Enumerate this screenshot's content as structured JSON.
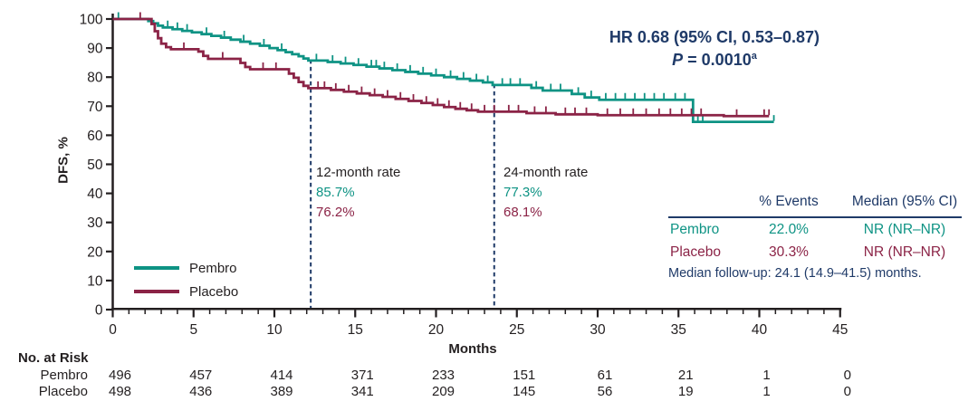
{
  "colors": {
    "pembro_teal": "#0E9384",
    "placebo_maroon": "#8B2346",
    "navy": "#1F3A68",
    "axis_black": "#231F20"
  },
  "annotation": {
    "hr_line": "HR 0.68 (95% CI, 0.53–0.87)",
    "p_prefix": "P",
    "p_rest": " = 0.0010",
    "p_sup": "a"
  },
  "rate_callouts": [
    {
      "label": "12-month rate",
      "pembro": "85.7%",
      "placebo": "76.2%"
    },
    {
      "label": "24-month rate",
      "pembro": "77.3%",
      "placebo": "68.1%"
    }
  ],
  "summary_table": {
    "col_events": "% Events",
    "col_median": "Median (95% CI)",
    "rows": [
      {
        "group": "Pembro",
        "events": "22.0%",
        "median": "NR (NR–NR)"
      },
      {
        "group": "Placebo",
        "events": "30.3%",
        "median": "NR (NR–NR)"
      }
    ],
    "footnote": "Median follow-up: 24.1 (14.9–41.5) months."
  },
  "risk_table": {
    "title": "No. at Risk",
    "rows": [
      {
        "label": "Pembro",
        "counts": [
          "496",
          "457",
          "414",
          "371",
          "233",
          "151",
          "61",
          "21",
          "1",
          "0"
        ]
      },
      {
        "label": "Placebo",
        "counts": [
          "498",
          "436",
          "389",
          "341",
          "209",
          "145",
          "56",
          "19",
          "1",
          "0"
        ]
      }
    ]
  },
  "chart_data": {
    "type": "line",
    "subtype": "kaplan-meier-step",
    "xlabel": "Months",
    "ylabel": "DFS, %",
    "xlim": [
      0,
      45
    ],
    "ylim": [
      0,
      100
    ],
    "x_ticks": [
      0,
      5,
      10,
      15,
      20,
      25,
      30,
      35,
      40,
      45
    ],
    "y_ticks": [
      100,
      90,
      80,
      70,
      60,
      50,
      40,
      30,
      20,
      10,
      0
    ],
    "grid": false,
    "legend_position": "lower-left",
    "hr": 0.68,
    "hr_ci": [
      0.53,
      0.87
    ],
    "p_value": 0.001,
    "milestones": [
      {
        "month": 12,
        "pembro_pct": 85.7,
        "placebo_pct": 76.2
      },
      {
        "month": 24,
        "pembro_pct": 77.3,
        "placebo_pct": 68.1
      }
    ],
    "milestone_line_months": [
      12.25,
      23.6
    ],
    "series": [
      {
        "name": "Pembro",
        "color_key": "pembro_teal",
        "pct_events": 22.0,
        "median_text": "NR (NR–NR)",
        "end_month": 40.9,
        "steps": [
          [
            0,
            100
          ],
          [
            2.2,
            99.3
          ],
          [
            2.5,
            98.5
          ],
          [
            2.8,
            97.7
          ],
          [
            3.1,
            97.1
          ],
          [
            3.7,
            96.5
          ],
          [
            4.3,
            95.9
          ],
          [
            4.9,
            95.4
          ],
          [
            5.5,
            94.8
          ],
          [
            6.1,
            94.2
          ],
          [
            6.7,
            93.6
          ],
          [
            7.3,
            92.9
          ],
          [
            7.9,
            92.2
          ],
          [
            8.5,
            91.5
          ],
          [
            9.1,
            90.8
          ],
          [
            9.7,
            90.0
          ],
          [
            10.2,
            89.3
          ],
          [
            10.7,
            88.6
          ],
          [
            11.1,
            87.9
          ],
          [
            11.5,
            87.2
          ],
          [
            11.8,
            86.4
          ],
          [
            12.1,
            85.7
          ],
          [
            13.3,
            85.2
          ],
          [
            14.1,
            84.7
          ],
          [
            14.9,
            84.2
          ],
          [
            15.7,
            83.6
          ],
          [
            16.5,
            83.0
          ],
          [
            17.3,
            82.4
          ],
          [
            18.1,
            81.8
          ],
          [
            18.9,
            81.2
          ],
          [
            19.7,
            80.6
          ],
          [
            20.5,
            80.0
          ],
          [
            21.3,
            79.4
          ],
          [
            22.1,
            78.8
          ],
          [
            22.9,
            78.2
          ],
          [
            23.5,
            77.3
          ],
          [
            25.9,
            76.3
          ],
          [
            26.6,
            75.4
          ],
          [
            28.4,
            74.2
          ],
          [
            29.2,
            73.0
          ],
          [
            30.1,
            72.2
          ],
          [
            35.9,
            64.6
          ]
        ],
        "censors": [
          [
            0.35,
            100
          ],
          [
            3.4,
            97.1
          ],
          [
            4.0,
            96.5
          ],
          [
            4.6,
            95.9
          ],
          [
            5.8,
            94.8
          ],
          [
            6.9,
            93.6
          ],
          [
            8.1,
            92.2
          ],
          [
            9.35,
            90.8
          ],
          [
            10.45,
            89.3
          ],
          [
            12.6,
            85.7
          ],
          [
            13.6,
            85.2
          ],
          [
            14.4,
            84.7
          ],
          [
            15.2,
            84.2
          ],
          [
            16.0,
            83.6
          ],
          [
            16.3,
            83.6
          ],
          [
            16.8,
            83.0
          ],
          [
            17.6,
            82.4
          ],
          [
            18.4,
            81.8
          ],
          [
            19.2,
            81.2
          ],
          [
            20.0,
            80.6
          ],
          [
            20.9,
            80.0
          ],
          [
            21.7,
            79.4
          ],
          [
            22.5,
            78.8
          ],
          [
            23.2,
            78.2
          ],
          [
            24.1,
            77.3
          ],
          [
            24.6,
            77.3
          ],
          [
            25.2,
            77.3
          ],
          [
            26.2,
            76.3
          ],
          [
            27.1,
            75.4
          ],
          [
            27.7,
            75.4
          ],
          [
            28.8,
            74.2
          ],
          [
            29.6,
            73.0
          ],
          [
            30.5,
            72.2
          ],
          [
            31.1,
            72.2
          ],
          [
            31.7,
            72.2
          ],
          [
            32.3,
            72.2
          ],
          [
            32.9,
            72.2
          ],
          [
            33.5,
            72.2
          ],
          [
            34.1,
            72.2
          ],
          [
            34.8,
            72.2
          ],
          [
            35.4,
            72.2
          ],
          [
            36.2,
            64.6
          ],
          [
            36.5,
            64.6
          ],
          [
            40.9,
            64.6
          ]
        ]
      },
      {
        "name": "Placebo",
        "color_key": "placebo_maroon",
        "pct_events": 30.3,
        "median_text": "NR (NR–NR)",
        "end_month": 40.6,
        "steps": [
          [
            0,
            100
          ],
          [
            2.4,
            98.3
          ],
          [
            2.6,
            95.8
          ],
          [
            2.8,
            93.4
          ],
          [
            3.0,
            91.5
          ],
          [
            3.3,
            90.3
          ],
          [
            3.6,
            89.6
          ],
          [
            5.3,
            88.8
          ],
          [
            5.6,
            87.3
          ],
          [
            5.9,
            86.3
          ],
          [
            7.9,
            84.9
          ],
          [
            8.2,
            83.5
          ],
          [
            8.5,
            82.7
          ],
          [
            10.9,
            81.2
          ],
          [
            11.2,
            79.8
          ],
          [
            11.5,
            78.3
          ],
          [
            11.8,
            77.0
          ],
          [
            12.1,
            76.2
          ],
          [
            13.5,
            75.6
          ],
          [
            14.3,
            75.0
          ],
          [
            15.1,
            74.4
          ],
          [
            15.9,
            73.8
          ],
          [
            16.7,
            73.2
          ],
          [
            17.5,
            72.5
          ],
          [
            18.3,
            71.8
          ],
          [
            19.1,
            71.1
          ],
          [
            19.8,
            70.4
          ],
          [
            20.5,
            69.7
          ],
          [
            21.2,
            69.1
          ],
          [
            21.9,
            68.6
          ],
          [
            22.6,
            68.1
          ],
          [
            25.6,
            67.6
          ],
          [
            27.4,
            67.2
          ],
          [
            30.0,
            66.9
          ],
          [
            37.8,
            66.6
          ]
        ],
        "censors": [
          [
            1.7,
            100
          ],
          [
            4.4,
            89.6
          ],
          [
            6.8,
            86.3
          ],
          [
            9.3,
            82.7
          ],
          [
            10.1,
            82.7
          ],
          [
            12.7,
            76.2
          ],
          [
            13.1,
            76.2
          ],
          [
            13.8,
            75.6
          ],
          [
            14.6,
            75.0
          ],
          [
            15.4,
            74.4
          ],
          [
            16.2,
            73.8
          ],
          [
            17.0,
            73.2
          ],
          [
            17.8,
            72.5
          ],
          [
            18.6,
            71.8
          ],
          [
            19.4,
            71.1
          ],
          [
            20.1,
            70.4
          ],
          [
            20.8,
            69.7
          ],
          [
            21.5,
            69.1
          ],
          [
            22.2,
            68.6
          ],
          [
            23.0,
            68.1
          ],
          [
            23.6,
            68.1
          ],
          [
            24.5,
            68.1
          ],
          [
            25.1,
            68.1
          ],
          [
            26.1,
            67.6
          ],
          [
            26.8,
            67.6
          ],
          [
            28.0,
            67.2
          ],
          [
            28.6,
            67.2
          ],
          [
            29.3,
            67.2
          ],
          [
            30.6,
            66.9
          ],
          [
            31.4,
            66.9
          ],
          [
            32.2,
            66.9
          ],
          [
            33.0,
            66.9
          ],
          [
            33.8,
            66.9
          ],
          [
            34.5,
            66.9
          ],
          [
            35.2,
            66.9
          ],
          [
            35.8,
            66.9
          ],
          [
            36.4,
            66.9
          ],
          [
            38.6,
            66.6
          ],
          [
            40.3,
            66.6
          ],
          [
            40.6,
            66.6
          ]
        ]
      }
    ]
  }
}
